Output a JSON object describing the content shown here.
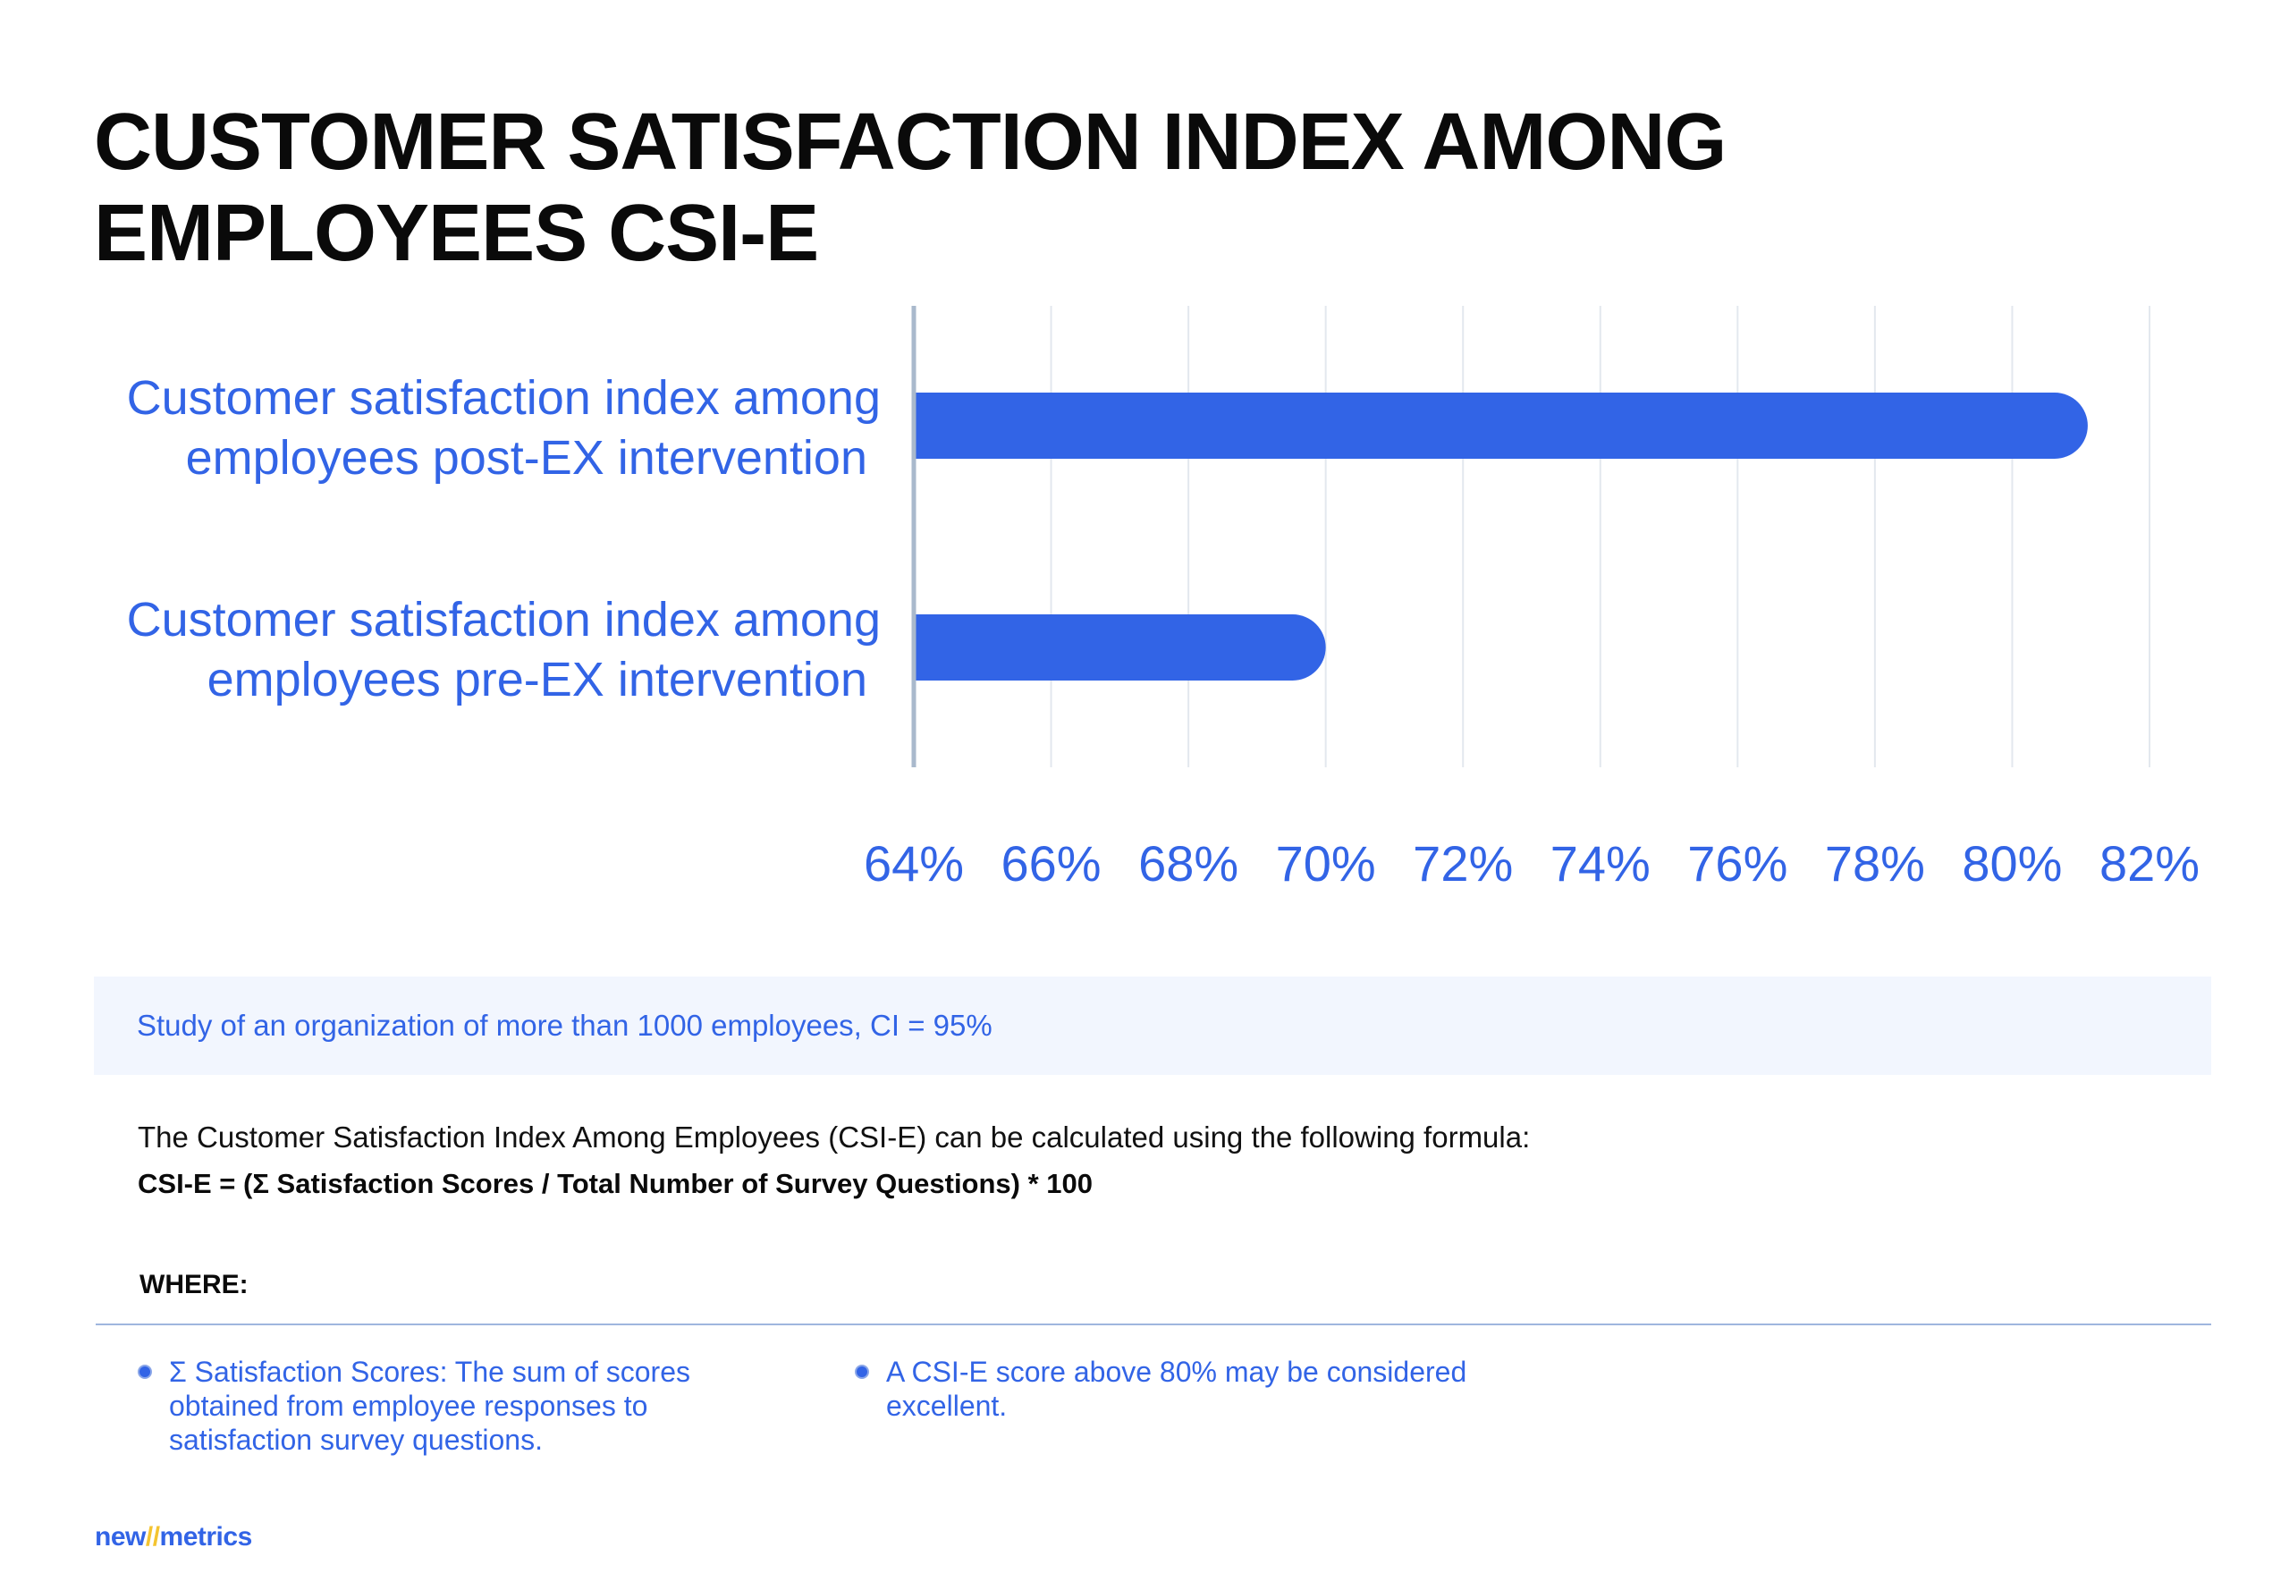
{
  "title_lines": [
    "CUSTOMER SATISFACTION INDEX AMONG",
    "EMPLOYEES CSI-E"
  ],
  "colors": {
    "accent": "#3264e6",
    "bar": "#3264e6",
    "axis": "#a9b9cc",
    "grid": "#e3e8ee",
    "note_bg": "#f2f6fe",
    "logo_slash": "#f4c430"
  },
  "chart_data": {
    "type": "bar",
    "orientation": "horizontal",
    "categories": [
      {
        "lines": [
          "Customer satisfaction index among",
          "employees post-EX intervention"
        ]
      },
      {
        "lines": [
          "Customer satisfaction index among",
          "employees pre-EX intervention"
        ]
      }
    ],
    "values": [
      81.1,
      70.0
    ],
    "xlim": [
      64,
      82
    ],
    "ticks": [
      {
        "value": 64,
        "label": "64%"
      },
      {
        "value": 66,
        "label": "66%"
      },
      {
        "value": 68,
        "label": "68%"
      },
      {
        "value": 70,
        "label": "70%"
      },
      {
        "value": 72,
        "label": "72%"
      },
      {
        "value": 74,
        "label": "74%"
      },
      {
        "value": 76,
        "label": "76%"
      },
      {
        "value": 78,
        "label": "78%"
      },
      {
        "value": 80,
        "label": "80%"
      },
      {
        "value": 82,
        "label": "82%"
      }
    ],
    "grid": true,
    "legend": "none"
  },
  "note": "Study of an organization of more than 1000 employees, CI = 95%",
  "formula_intro": "The Customer Satisfaction Index Among Employees (CSI-E) can be calculated using the following formula:",
  "formula": "CSI-E = (Σ Satisfaction Scores / Total Number of Survey Questions) * 100",
  "where_label": "WHERE:",
  "bullets": [
    "Σ Satisfaction Scores: The sum of scores obtained from employee responses to satisfaction survey questions.",
    "A CSI-E score above 80% may be considered excellent."
  ],
  "logo": {
    "part1": "new",
    "slash": "//",
    "part2": "metrics"
  }
}
